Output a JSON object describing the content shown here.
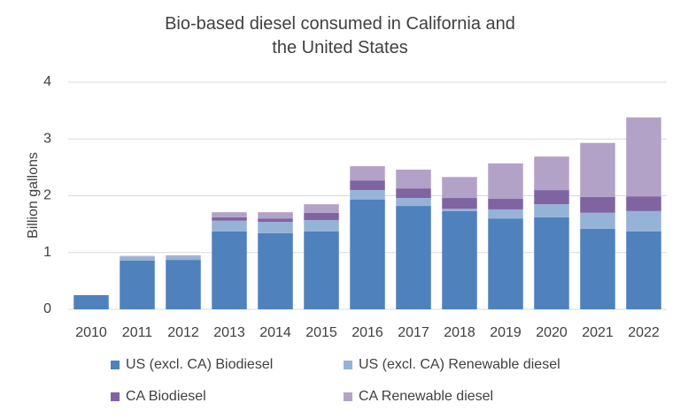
{
  "chart_data": {
    "type": "stacked-bar",
    "title": "Bio-based diesel consumed in California and the United States",
    "y_label": "Billion gallons",
    "categories": [
      "2010",
      "2011",
      "2012",
      "2013",
      "2014",
      "2015",
      "2016",
      "2017",
      "2018",
      "2019",
      "2020",
      "2021",
      "2022"
    ],
    "series": [
      {
        "name": "US (excl. CA) Biodiesel",
        "color": "#4f81bd",
        "values": [
          0.25,
          0.86,
          0.87,
          1.37,
          1.34,
          1.37,
          1.93,
          1.82,
          1.73,
          1.6,
          1.62,
          1.42,
          1.37
        ]
      },
      {
        "name": "US (excl. CA) Renewable diesel",
        "color": "#95b3d7",
        "values": [
          0,
          0.07,
          0.06,
          0.19,
          0.2,
          0.2,
          0.17,
          0.14,
          0.04,
          0.16,
          0.23,
          0.28,
          0.36
        ]
      },
      {
        "name": "CA Biodiesel",
        "color": "#8064a2",
        "values": [
          0,
          0,
          0,
          0.06,
          0.06,
          0.13,
          0.17,
          0.17,
          0.19,
          0.19,
          0.25,
          0.28,
          0.26
        ]
      },
      {
        "name": "CA Renewable diesel",
        "color": "#b3a2c7",
        "values": [
          0,
          0.01,
          0.02,
          0.09,
          0.11,
          0.15,
          0.25,
          0.33,
          0.37,
          0.62,
          0.59,
          0.95,
          1.39
        ]
      }
    ],
    "ylim": [
      0,
      4
    ],
    "yticks": [
      0,
      1,
      2,
      3,
      4
    ],
    "grid": true
  }
}
